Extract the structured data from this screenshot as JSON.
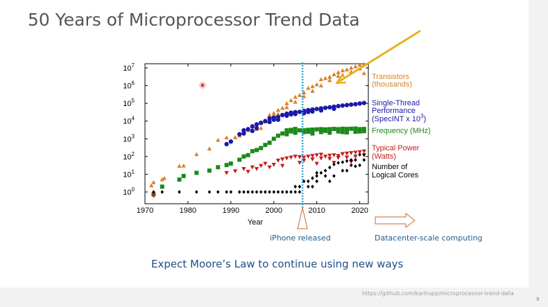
{
  "slide": {
    "title": "50 Years of Microprocessor Trend Data",
    "subtitle": "Expect Moore’s Law to continue using new ways",
    "source": "https://github.com/karlrupp/microprocessor-trend-data",
    "page_number": "9",
    "iphone_label": "iPhone released",
    "datacenter_label": "Datacenter-scale computing"
  },
  "colors": {
    "transistors": "#d9822b",
    "single_thread": "#1a1aa8",
    "frequency": "#1a8a1a",
    "power": "#c0201c",
    "cores": "#000000",
    "trend_arrow": "#e8b01c",
    "iphone_line": "#2aa5d6",
    "annotation_text": "#1f5c8c",
    "datacenter_arrow": "#c46a2e"
  },
  "chart_data": {
    "type": "scatter",
    "xlabel": "Year",
    "ylabel": "",
    "xlim": [
      1970,
      2022
    ],
    "ylim": [
      0.4,
      20000000
    ],
    "y_scale": "log",
    "x_ticks": [
      1970,
      1980,
      1990,
      2000,
      2010,
      2020
    ],
    "y_ticks": [
      {
        "value": 1,
        "exp": "0"
      },
      {
        "value": 10,
        "exp": "1"
      },
      {
        "value": 100,
        "exp": "2"
      },
      {
        "value": 1000,
        "exp": "3"
      },
      {
        "value": 10000,
        "exp": "4"
      },
      {
        "value": 100000,
        "exp": "5"
      },
      {
        "value": 1000000,
        "exp": "6"
      },
      {
        "value": 10000000,
        "exp": "7"
      }
    ],
    "annotations": [
      {
        "type": "vertical_line",
        "x": 2007,
        "label": "iPhone released"
      }
    ],
    "series": [
      {
        "key": "transistors",
        "legend": [
          "Transistors",
          "(thousands)"
        ],
        "marker": "triangle",
        "points": [
          [
            1971.5,
            2.3
          ],
          [
            1972,
            3.5
          ],
          [
            1974,
            5
          ],
          [
            1974.5,
            6
          ],
          [
            1978,
            29
          ],
          [
            1979,
            30
          ],
          [
            1982,
            134
          ],
          [
            1985,
            275
          ],
          [
            1989,
            1180
          ],
          [
            1991,
            1200
          ],
          [
            1993,
            3100
          ],
          [
            1994,
            3000
          ],
          [
            1995,
            5500
          ],
          [
            1996,
            3500
          ],
          [
            1997,
            7500
          ],
          [
            1998,
            9500
          ],
          [
            1999,
            22000
          ],
          [
            2000,
            28000
          ],
          [
            2001,
            42000
          ],
          [
            2002,
            55000
          ],
          [
            2003,
            100000
          ],
          [
            2004,
            150000
          ],
          [
            2005,
            230000
          ],
          [
            2006,
            290000
          ],
          [
            2007,
            410000
          ],
          [
            2008,
            730000
          ],
          [
            2009,
            900000
          ],
          [
            2010,
            1170000
          ],
          [
            2011,
            2270000
          ],
          [
            2012,
            2600000
          ],
          [
            2013,
            3100000
          ],
          [
            2014,
            4300000
          ],
          [
            2015,
            5600000
          ],
          [
            2016,
            7200000
          ],
          [
            2017,
            8000000
          ],
          [
            2018,
            10000000
          ],
          [
            2019,
            12000000
          ],
          [
            2020,
            15000000
          ],
          [
            2021,
            16000000
          ],
          [
            1987,
            850
          ],
          [
            1992,
            1500
          ],
          [
            1997,
            4000
          ],
          [
            2001,
            25000
          ],
          [
            2005,
            120000
          ],
          [
            2009,
            500000
          ],
          [
            2013,
            2000000
          ],
          [
            2016,
            4000000
          ],
          [
            2020,
            9000000
          ],
          [
            1999,
            9000
          ],
          [
            2003,
            60000
          ],
          [
            2007,
            250000
          ],
          [
            2011,
            1000000
          ],
          [
            2015,
            3500000
          ],
          [
            2018,
            6000000
          ],
          [
            2021,
            5000000
          ]
        ]
      },
      {
        "key": "single_thread",
        "legend": [
          "Single-Thread",
          "Performance",
          "(SpecINT x 10",
          ")"
        ],
        "legend_sup": "3",
        "marker": "circle",
        "points": [
          [
            1989,
            500
          ],
          [
            1990,
            700
          ],
          [
            1992,
            1800
          ],
          [
            1993,
            3000
          ],
          [
            1994,
            3500
          ],
          [
            1995,
            5000
          ],
          [
            1996,
            6500
          ],
          [
            1997,
            8000
          ],
          [
            1998,
            10000
          ],
          [
            1999,
            14000
          ],
          [
            2000,
            16000
          ],
          [
            2001,
            17000
          ],
          [
            2002,
            22000
          ],
          [
            2003,
            26000
          ],
          [
            2004,
            30000
          ],
          [
            2005,
            32000
          ],
          [
            2006,
            33000
          ],
          [
            2007,
            38000
          ],
          [
            2008,
            42000
          ],
          [
            2009,
            45000
          ],
          [
            2010,
            48000
          ],
          [
            2011,
            52000
          ],
          [
            2012,
            56000
          ],
          [
            2013,
            60000
          ],
          [
            2014,
            65000
          ],
          [
            2015,
            70000
          ],
          [
            2016,
            75000
          ],
          [
            2017,
            80000
          ],
          [
            2018,
            85000
          ],
          [
            2019,
            90000
          ],
          [
            2020,
            98000
          ],
          [
            2021,
            105000
          ],
          [
            1993,
            2000
          ],
          [
            1996,
            4000
          ],
          [
            1999,
            9000
          ],
          [
            2001,
            12000
          ],
          [
            2003,
            20000
          ],
          [
            2005,
            25000
          ],
          [
            2007,
            28000
          ],
          [
            2009,
            35000
          ],
          [
            2011,
            40000
          ],
          [
            2014,
            50000
          ],
          [
            1995,
            2800
          ],
          [
            2000,
            12000
          ],
          [
            2004,
            24000
          ],
          [
            2008,
            33000
          ]
        ]
      },
      {
        "key": "frequency",
        "legend": [
          "Frequency (MHz)"
        ],
        "marker": "square",
        "points": [
          [
            1972,
            0.74
          ],
          [
            1974,
            2
          ],
          [
            1978,
            5
          ],
          [
            1979,
            8
          ],
          [
            1982,
            12
          ],
          [
            1985,
            16
          ],
          [
            1987,
            25
          ],
          [
            1989,
            33
          ],
          [
            1990,
            40
          ],
          [
            1992,
            66
          ],
          [
            1993,
            100
          ],
          [
            1994,
            120
          ],
          [
            1995,
            200
          ],
          [
            1996,
            233
          ],
          [
            1997,
            300
          ],
          [
            1998,
            450
          ],
          [
            1999,
            600
          ],
          [
            2000,
            1000
          ],
          [
            2001,
            1500
          ],
          [
            2002,
            2000
          ],
          [
            2003,
            3000
          ],
          [
            2004,
            3200
          ],
          [
            2005,
            3600
          ],
          [
            2006,
            3000
          ],
          [
            2007,
            3000
          ],
          [
            2008,
            3200
          ],
          [
            2009,
            3300
          ],
          [
            2010,
            3400
          ],
          [
            2011,
            3500
          ],
          [
            2012,
            3400
          ],
          [
            2013,
            3500
          ],
          [
            2014,
            3600
          ],
          [
            2015,
            3500
          ],
          [
            2016,
            3700
          ],
          [
            2017,
            3600
          ],
          [
            2018,
            3700
          ],
          [
            2019,
            3800
          ],
          [
            2020,
            3500
          ],
          [
            2021,
            3600
          ],
          [
            2003,
            1800
          ],
          [
            2005,
            2200
          ],
          [
            2007,
            2400
          ],
          [
            2009,
            2000
          ],
          [
            2011,
            2400
          ],
          [
            2013,
            2200
          ],
          [
            2015,
            2600
          ],
          [
            2017,
            2300
          ],
          [
            2019,
            2500
          ],
          [
            2021,
            2700
          ],
          [
            2004,
            2600
          ],
          [
            2008,
            2500
          ],
          [
            2012,
            2800
          ],
          [
            2016,
            2400
          ],
          [
            2020,
            2600
          ]
        ]
      },
      {
        "key": "power",
        "legend": [
          "Typical Power",
          "(Watts)"
        ],
        "marker": "triangle-down",
        "points": [
          [
            1972,
            0.6
          ],
          [
            1989,
            12
          ],
          [
            1991,
            15
          ],
          [
            1993,
            20
          ],
          [
            1994,
            14
          ],
          [
            1995,
            25
          ],
          [
            1996,
            20
          ],
          [
            1997,
            30
          ],
          [
            1998,
            40
          ],
          [
            1999,
            25
          ],
          [
            2000,
            35
          ],
          [
            2001,
            60
          ],
          [
            2002,
            70
          ],
          [
            2003,
            80
          ],
          [
            2004,
            90
          ],
          [
            2005,
            100
          ],
          [
            2006,
            95
          ],
          [
            2007,
            90
          ],
          [
            2008,
            100
          ],
          [
            2009,
            110
          ],
          [
            2010,
            120
          ],
          [
            2011,
            130
          ],
          [
            2012,
            100
          ],
          [
            2013,
            115
          ],
          [
            2014,
            120
          ],
          [
            2015,
            110
          ],
          [
            2016,
            140
          ],
          [
            2017,
            150
          ],
          [
            2018,
            160
          ],
          [
            2019,
            170
          ],
          [
            2020,
            180
          ],
          [
            2021,
            200
          ],
          [
            2007,
            60
          ],
          [
            2009,
            70
          ],
          [
            2011,
            80
          ],
          [
            2013,
            75
          ],
          [
            2015,
            85
          ],
          [
            2017,
            90
          ],
          [
            2019,
            100
          ],
          [
            2021,
            120
          ],
          [
            2010,
            40
          ],
          [
            2014,
            45
          ],
          [
            2018,
            50
          ],
          [
            2002,
            30
          ],
          [
            2006,
            45
          ]
        ]
      },
      {
        "key": "cores",
        "legend": [
          "Number of",
          "Logical Cores"
        ],
        "marker": "diamond",
        "points": [
          [
            1972,
            1
          ],
          [
            1974,
            1
          ],
          [
            1978,
            1
          ],
          [
            1982,
            1
          ],
          [
            1985,
            1
          ],
          [
            1987,
            1
          ],
          [
            1989,
            1
          ],
          [
            1990,
            1
          ],
          [
            1992,
            1
          ],
          [
            1993,
            1
          ],
          [
            1994,
            1
          ],
          [
            1995,
            1
          ],
          [
            1996,
            1
          ],
          [
            1997,
            1
          ],
          [
            1998,
            1
          ],
          [
            1999,
            1
          ],
          [
            2000,
            1
          ],
          [
            2001,
            1
          ],
          [
            2002,
            1
          ],
          [
            2003,
            1
          ],
          [
            2004,
            1
          ],
          [
            2005,
            1
          ],
          [
            2005,
            2
          ],
          [
            2006,
            2
          ],
          [
            2007,
            4
          ],
          [
            2008,
            4
          ],
          [
            2009,
            6
          ],
          [
            2010,
            8
          ],
          [
            2010,
            12
          ],
          [
            2011,
            12
          ],
          [
            2012,
            16
          ],
          [
            2013,
            24
          ],
          [
            2014,
            36
          ],
          [
            2015,
            44
          ],
          [
            2016,
            48
          ],
          [
            2017,
            56
          ],
          [
            2018,
            64
          ],
          [
            2019,
            64
          ],
          [
            2020,
            128
          ],
          [
            2021,
            128
          ],
          [
            2008,
            2
          ],
          [
            2010,
            4
          ],
          [
            2012,
            8
          ],
          [
            2014,
            8
          ],
          [
            2016,
            16
          ],
          [
            2018,
            32
          ],
          [
            2020,
            32
          ],
          [
            2021,
            64
          ],
          [
            2006,
            1
          ],
          [
            2009,
            2
          ],
          [
            2013,
            4
          ],
          [
            2017,
            16
          ],
          [
            2019,
            28
          ]
        ]
      }
    ]
  }
}
